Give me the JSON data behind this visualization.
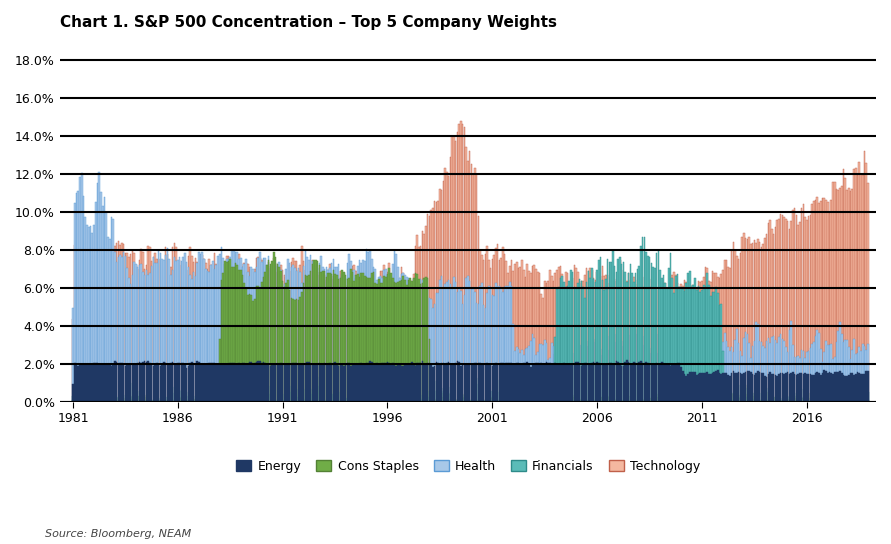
{
  "title": "Chart 1. S&P 500 Concentration – Top 5 Company Weights",
  "source": "Source: Bloomberg, NEAM",
  "ylim": [
    0.0,
    0.19
  ],
  "yticks": [
    0.0,
    0.02,
    0.04,
    0.06,
    0.08,
    0.1,
    0.12,
    0.14,
    0.16,
    0.18
  ],
  "ytick_labels": [
    "0.0%",
    "2.0%",
    "4.0%",
    "6.0%",
    "8.0%",
    "10.0%",
    "12.0%",
    "14.0%",
    "16.0%",
    "18.0%"
  ],
  "xticks": [
    1981,
    1986,
    1991,
    1996,
    2001,
    2006,
    2011,
    2016
  ],
  "legend_entries": [
    "Energy",
    "Cons Staples",
    "Health",
    "Financials",
    "Technology"
  ],
  "colors": {
    "Energy": "#1f3864",
    "Cons Staples": "#70ad47",
    "Health": "#a8c8e8",
    "Financials": "#5bbcb8",
    "Technology": "#f4b8a0"
  },
  "edge_colors": {
    "Energy": "#1f3864",
    "Cons Staples": "#538135",
    "Health": "#5b9bd5",
    "Financials": "#2e8b8a",
    "Technology": "#c0604a"
  },
  "background_color": "#ffffff",
  "grid_color": "#000000",
  "fig_width": 8.91,
  "fig_height": 5.44
}
